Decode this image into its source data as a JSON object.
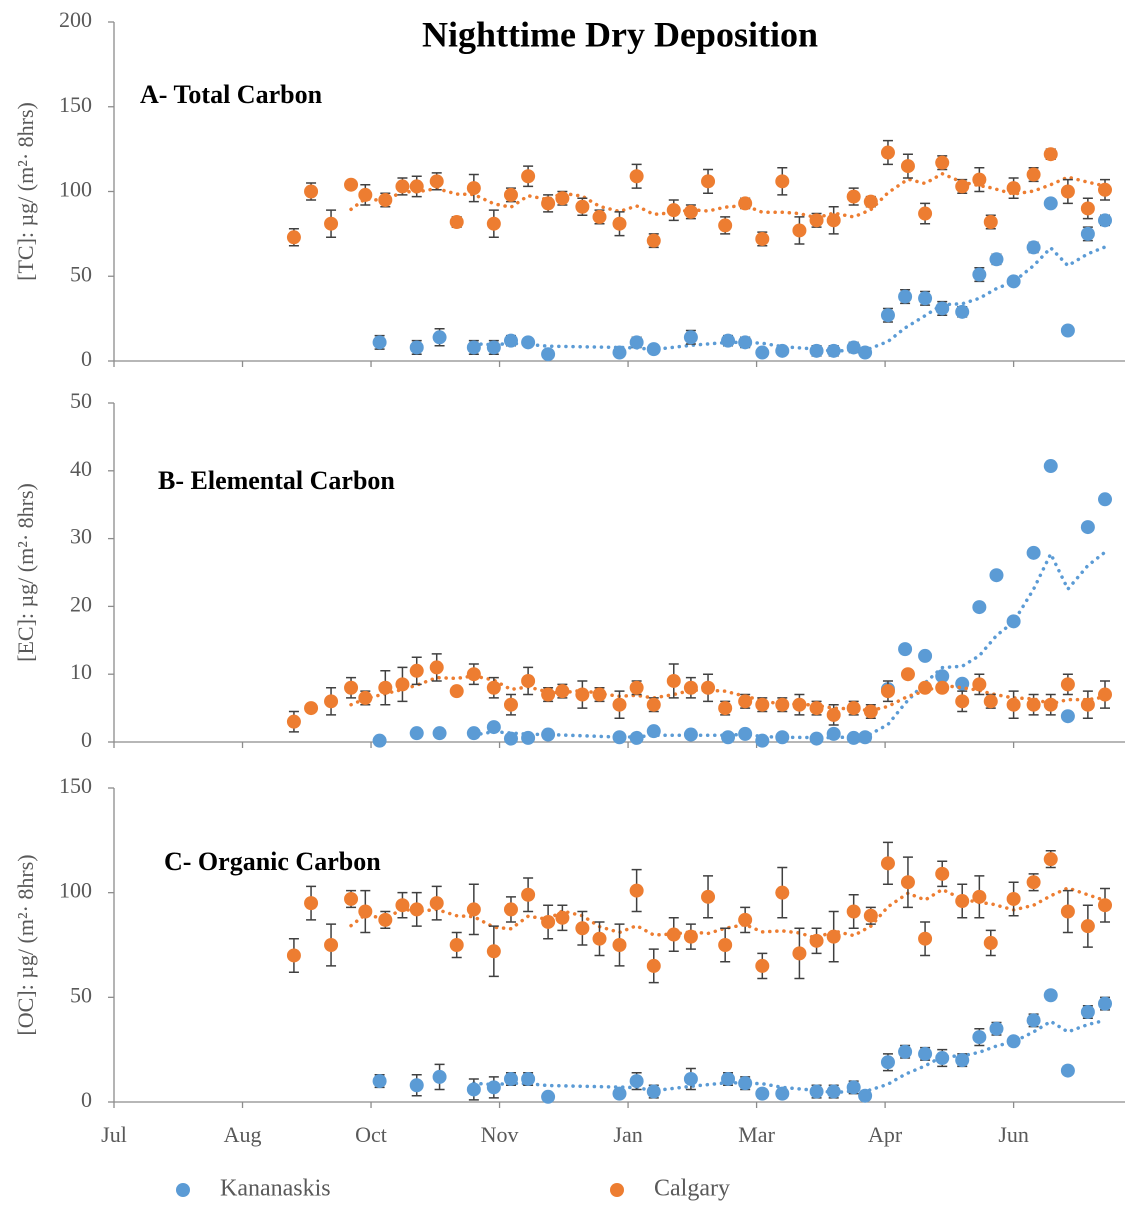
{
  "chart_data": [
    {
      "type": "scatter",
      "title": "Nighttime Dry Deposition",
      "subtitle": "A- Total Carbon",
      "ylabel": "[TC]: µg/ (m²· 8hrs)",
      "xlim": [
        0,
        354
      ],
      "ylim": [
        0,
        200
      ],
      "yticks": [
        0,
        50,
        100,
        150,
        200
      ],
      "trendline": {
        "type": "moving-average",
        "period": 4
      },
      "series": [
        {
          "color": "#5B9BD5",
          "x": [
            93,
            106,
            114,
            126,
            133,
            139,
            145,
            152,
            177,
            183,
            189,
            202,
            215,
            221,
            227,
            234,
            246,
            252,
            259,
            263,
            271,
            277,
            284,
            290,
            297,
            303,
            309,
            315,
            322,
            328,
            334,
            341,
            347
          ],
          "values": [
            11,
            8,
            14,
            8,
            8,
            12,
            11,
            4,
            5,
            11,
            7,
            14,
            12,
            11,
            5,
            6,
            6,
            6,
            8,
            5,
            27,
            38,
            37,
            31,
            29,
            51,
            60,
            47,
            67,
            93,
            18,
            75,
            83
          ],
          "errors": [
            4,
            4,
            5,
            4,
            4,
            3,
            2,
            1,
            1,
            3,
            2,
            4,
            3,
            3,
            1,
            1,
            3,
            3,
            3,
            1,
            4,
            4,
            4,
            4,
            3,
            4,
            3,
            2,
            3,
            2,
            2,
            4,
            3
          ]
        },
        {
          "color": "#ED7D31",
          "x": [
            63,
            69,
            76,
            83,
            88,
            95,
            101,
            106,
            113,
            120,
            126,
            133,
            139,
            145,
            152,
            157,
            164,
            170,
            177,
            183,
            189,
            196,
            202,
            208,
            214,
            221,
            227,
            234,
            240,
            246,
            252,
            259,
            265,
            271,
            278,
            284,
            290,
            297,
            303,
            307,
            315,
            322,
            328,
            334,
            341,
            347
          ],
          "values": [
            73,
            100,
            81,
            104,
            98,
            95,
            103,
            103,
            106,
            82,
            102,
            81,
            98,
            109,
            93,
            96,
            91,
            85,
            81,
            109,
            71,
            89,
            88,
            106,
            80,
            93,
            72,
            106,
            77,
            83,
            83,
            97,
            94,
            123,
            115,
            87,
            117,
            103,
            107,
            82,
            102,
            110,
            122,
            100,
            90,
            101
          ],
          "errors": [
            5,
            5,
            8,
            2,
            6,
            4,
            5,
            6,
            5,
            3,
            8,
            8,
            4,
            6,
            5,
            4,
            5,
            4,
            7,
            7,
            4,
            6,
            4,
            7,
            5,
            3,
            4,
            8,
            8,
            4,
            8,
            5,
            3,
            7,
            7,
            6,
            4,
            4,
            7,
            4,
            6,
            4,
            3,
            7,
            6,
            6
          ]
        }
      ]
    },
    {
      "type": "scatter",
      "subtitle": "B- Elemental Carbon",
      "ylabel": "[EC]: µg/ (m²· 8hrs)",
      "xlim": [
        0,
        354
      ],
      "ylim": [
        0,
        50
      ],
      "yticks": [
        0,
        10,
        20,
        30,
        40,
        50
      ],
      "trendline": {
        "type": "moving-average",
        "period": 4
      },
      "series": [
        {
          "color": "#5B9BD5",
          "x": [
            93,
            106,
            114,
            126,
            133,
            139,
            145,
            152,
            177,
            183,
            189,
            202,
            215,
            221,
            227,
            234,
            246,
            252,
            259,
            263,
            271,
            277,
            284,
            290,
            297,
            303,
            309,
            315,
            322,
            328,
            334,
            341,
            347
          ],
          "values": [
            0.2,
            1.3,
            1.3,
            1.3,
            2.2,
            0.5,
            0.6,
            1.1,
            0.7,
            0.6,
            1.6,
            1.1,
            0.7,
            1.2,
            0.2,
            0.7,
            0.5,
            1.2,
            0.6,
            0.7,
            7.8,
            13.7,
            12.7,
            9.7,
            8.6,
            19.9,
            24.6,
            17.8,
            27.9,
            40.7,
            3.8,
            31.7,
            35.8
          ],
          "errors": [
            0.4,
            0.4,
            0.4,
            0.4,
            0.4,
            0.4,
            0.4,
            0.4,
            0.4,
            0.4,
            0.4,
            0.4,
            0.4,
            0.4,
            0.4,
            0.4,
            0.4,
            0.4,
            0.4,
            0.4,
            0.4,
            0.4,
            0.4,
            0.4,
            0.4,
            0.4,
            0.4,
            0.4,
            0.4,
            0.4,
            0.4,
            0.4,
            0.4
          ]
        },
        {
          "color": "#ED7D31",
          "x": [
            63,
            69,
            76,
            83,
            88,
            95,
            101,
            106,
            113,
            120,
            126,
            133,
            139,
            145,
            152,
            157,
            164,
            170,
            177,
            183,
            189,
            196,
            202,
            208,
            214,
            221,
            227,
            234,
            240,
            246,
            252,
            259,
            265,
            271,
            278,
            284,
            290,
            297,
            303,
            307,
            315,
            322,
            328,
            334,
            341,
            347
          ],
          "values": [
            3,
            5,
            6,
            8,
            6.5,
            8,
            8.5,
            10.5,
            11,
            7.5,
            10,
            8,
            5.5,
            9,
            7,
            7.5,
            7,
            7,
            5.5,
            8,
            5.5,
            9,
            8,
            8,
            5,
            6,
            5.5,
            5.5,
            5.5,
            5,
            4,
            5,
            4.5,
            7.5,
            10,
            8,
            8,
            6,
            8.5,
            6,
            5.5,
            5.5,
            5.5,
            8.5,
            5.5,
            7
          ],
          "errors": [
            1.5,
            0.5,
            2,
            1.5,
            1,
            2.5,
            2.5,
            2,
            2,
            0.5,
            1.5,
            1.5,
            1.5,
            2,
            1,
            1,
            2,
            1,
            2,
            1,
            1,
            2.5,
            1.5,
            2,
            1,
            1,
            1,
            1,
            1.5,
            1,
            1.5,
            1,
            1,
            1.5,
            0.5,
            0.5,
            0.5,
            1.5,
            1.5,
            1,
            2,
            1.5,
            1.5,
            1.5,
            2,
            2
          ]
        }
      ]
    },
    {
      "type": "scatter",
      "subtitle": "C- Organic Carbon",
      "ylabel": "[OC]: µg/ (m²· 8hrs)",
      "xlim": [
        0,
        354
      ],
      "ylim": [
        0,
        150
      ],
      "yticks": [
        0,
        50,
        100,
        150
      ],
      "xticks": [
        {
          "value": 0,
          "label": "Jul"
        },
        {
          "value": 45,
          "label": "Aug"
        },
        {
          "value": 90,
          "label": "Oct"
        },
        {
          "value": 135,
          "label": "Nov"
        },
        {
          "value": 180,
          "label": "Jan"
        },
        {
          "value": 225,
          "label": "Mar"
        },
        {
          "value": 270,
          "label": "Apr"
        },
        {
          "value": 315,
          "label": "Jun"
        }
      ],
      "trendline": {
        "type": "moving-average",
        "period": 4
      },
      "series": [
        {
          "name": "Kananaskis",
          "color": "#5B9BD5",
          "x": [
            93,
            106,
            114,
            126,
            133,
            139,
            145,
            152,
            177,
            183,
            189,
            202,
            215,
            221,
            227,
            234,
            246,
            252,
            259,
            263,
            271,
            277,
            284,
            290,
            297,
            303,
            309,
            315,
            322,
            328,
            334,
            341,
            347
          ],
          "values": [
            10,
            8,
            12,
            6,
            7,
            11,
            11,
            2.5,
            4,
            10,
            5,
            11,
            11,
            9,
            4,
            4,
            5,
            5,
            7,
            3,
            19,
            24,
            23,
            21,
            20,
            31,
            35,
            29,
            39,
            51,
            15,
            43,
            47
          ],
          "errors": [
            3,
            5,
            6,
            5,
            5,
            3,
            3,
            1,
            1,
            4,
            3,
            5,
            3,
            3,
            2,
            2,
            3,
            3,
            3,
            2,
            4,
            3,
            3,
            4,
            3,
            4,
            3,
            2,
            3,
            2,
            2,
            3,
            3
          ]
        },
        {
          "name": "Calgary",
          "color": "#ED7D31",
          "x": [
            63,
            69,
            76,
            83,
            88,
            95,
            101,
            106,
            113,
            120,
            126,
            133,
            139,
            145,
            152,
            157,
            164,
            170,
            177,
            183,
            189,
            196,
            202,
            208,
            214,
            221,
            227,
            234,
            240,
            246,
            252,
            259,
            265,
            271,
            278,
            284,
            290,
            297,
            303,
            307,
            315,
            322,
            328,
            334,
            341,
            347
          ],
          "values": [
            70,
            95,
            75,
            97,
            91,
            87,
            94,
            92,
            95,
            75,
            92,
            72,
            92,
            99,
            86,
            88,
            83,
            78,
            75,
            101,
            65,
            80,
            79,
            98,
            75,
            87,
            65,
            100,
            71,
            77,
            79,
            91,
            89,
            114,
            105,
            78,
            109,
            96,
            98,
            76,
            97,
            105,
            116,
            91,
            84,
            94
          ],
          "errors": [
            8,
            8,
            10,
            4,
            10,
            4,
            6,
            8,
            8,
            6,
            12,
            12,
            6,
            8,
            8,
            6,
            8,
            8,
            10,
            10,
            8,
            8,
            6,
            10,
            8,
            6,
            6,
            12,
            12,
            6,
            12,
            8,
            4,
            10,
            12,
            8,
            6,
            8,
            10,
            6,
            8,
            4,
            4,
            10,
            10,
            8
          ]
        }
      ]
    }
  ]
}
